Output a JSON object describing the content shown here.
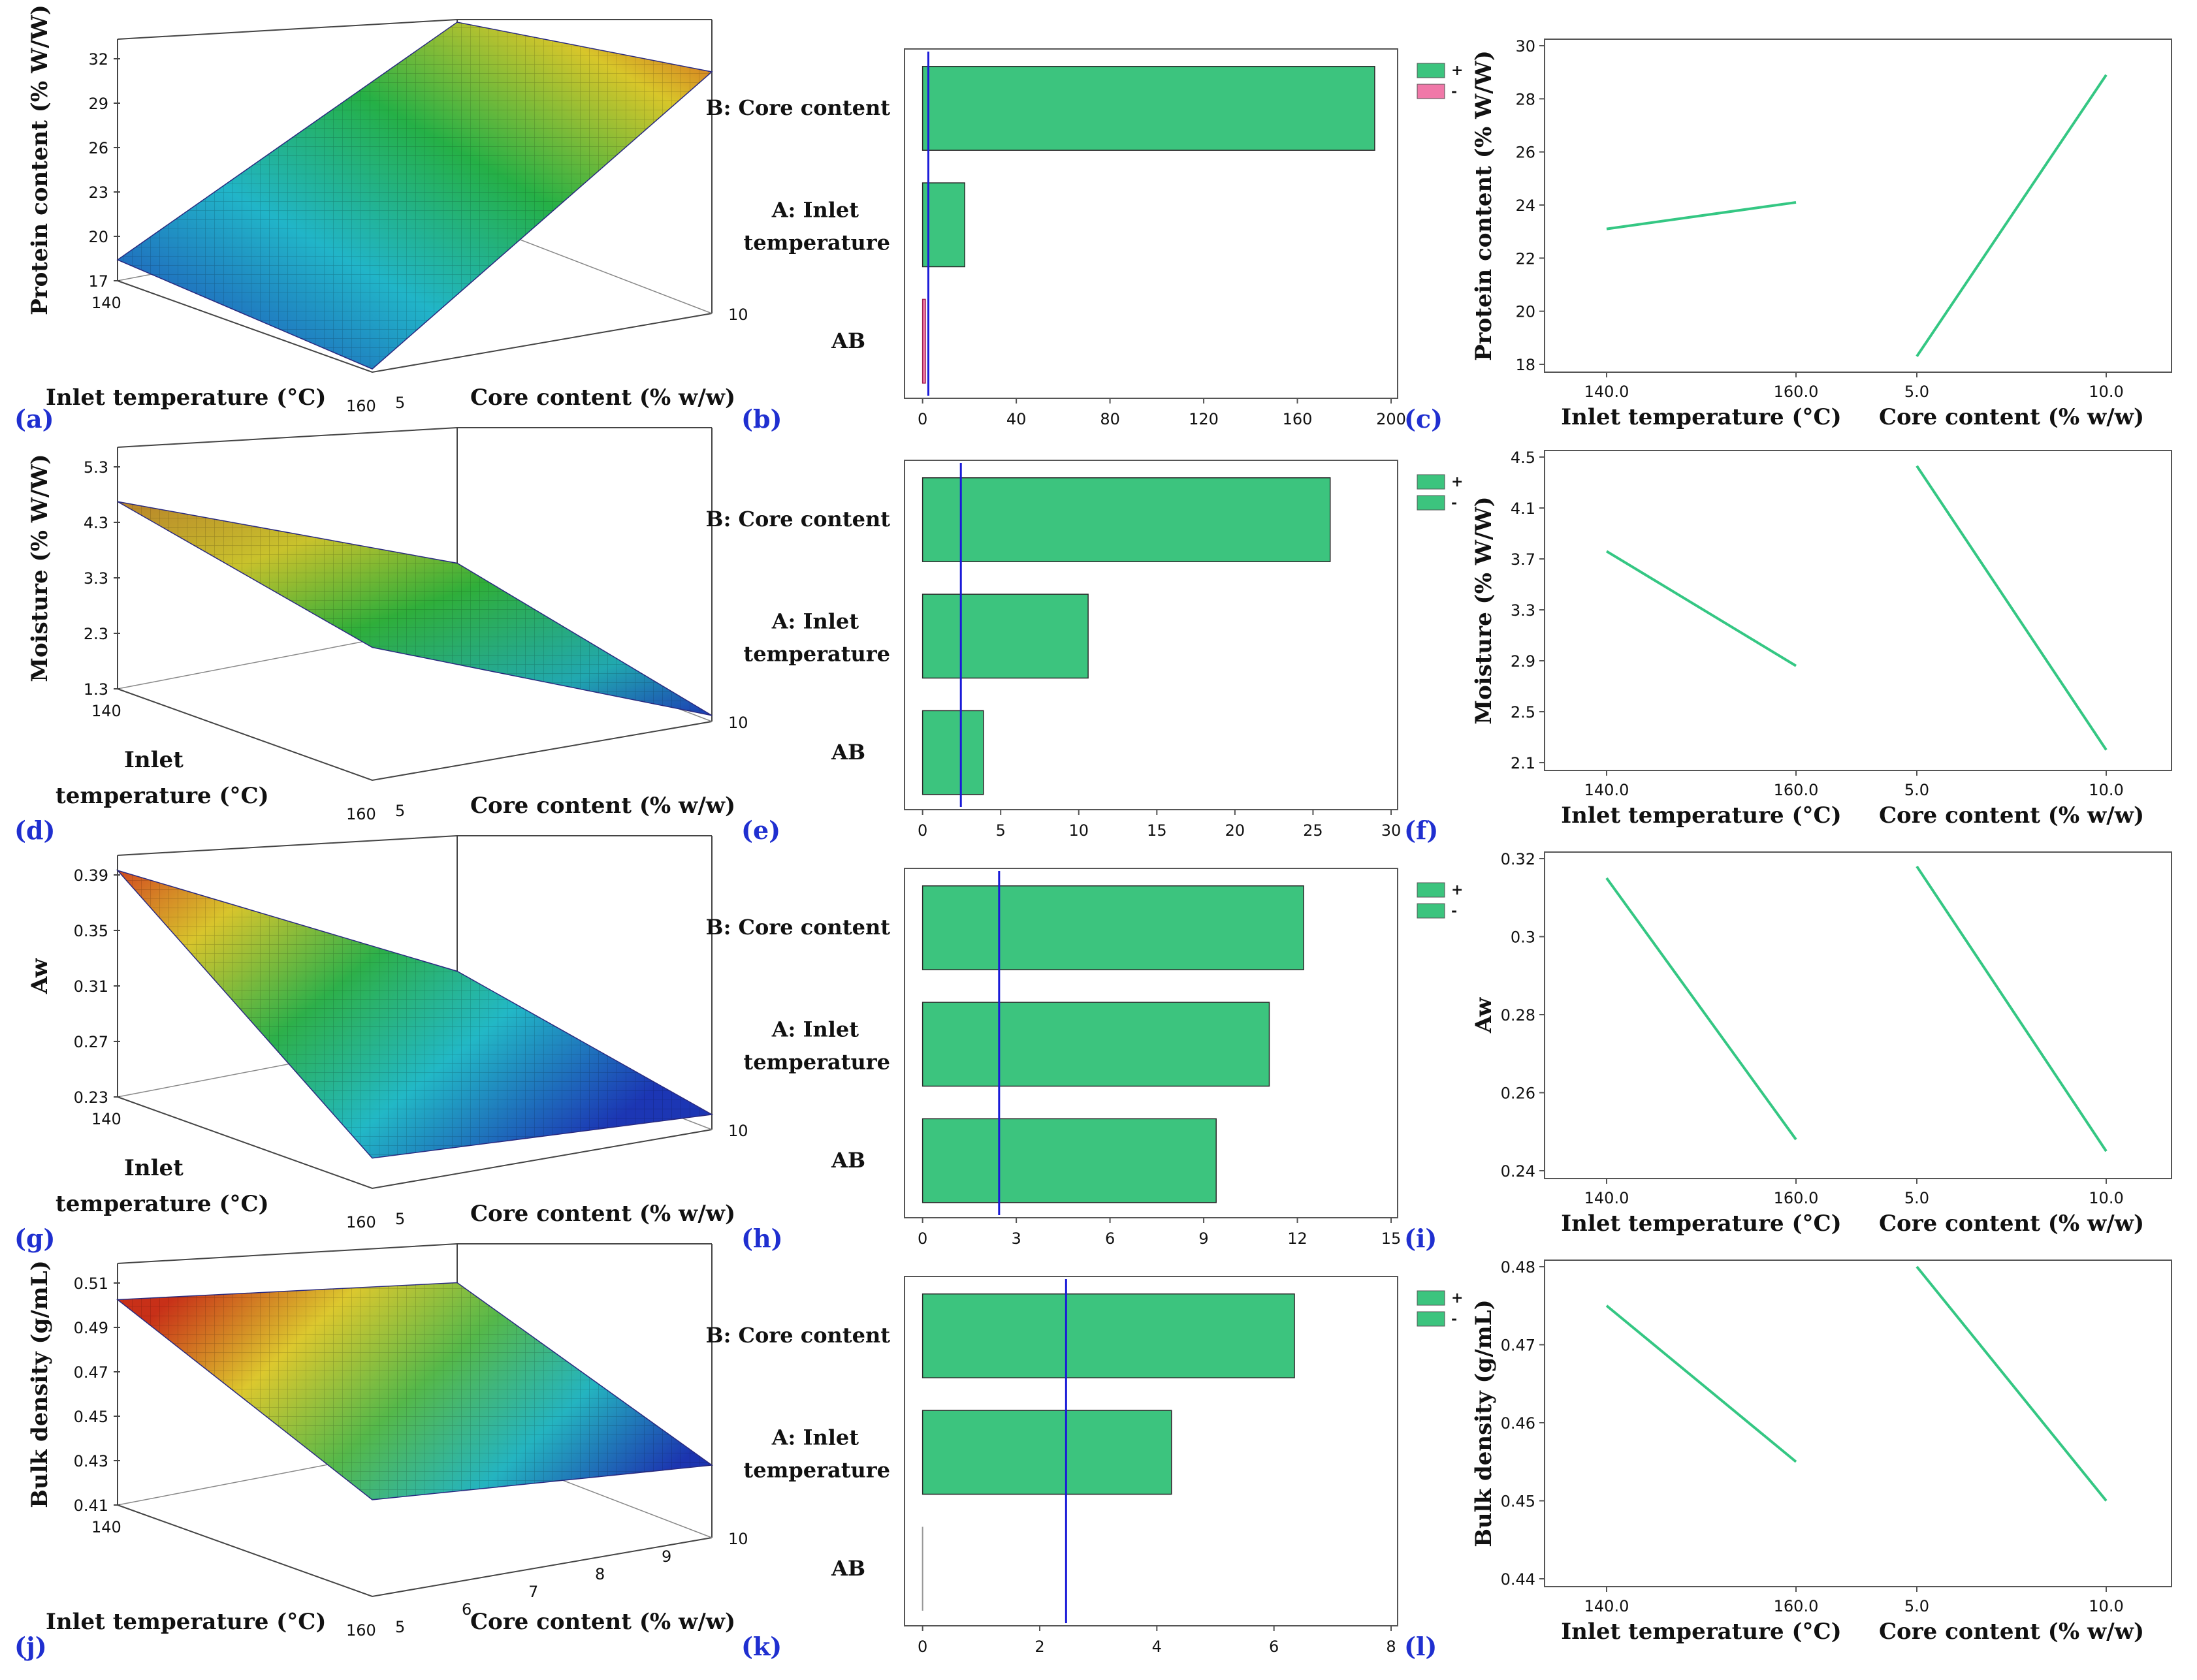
{
  "colors": {
    "bar_fill": "#3cc47e",
    "bar_stroke": "#2a2a2a",
    "negative_fill": "#f078a8",
    "ref_line": "#1a1ad8",
    "effect_line": "#34c783",
    "panel_letter": "#1f2fd0",
    "surface_low": "#1f3bb8",
    "surface_mid": "#1fb04a",
    "surface_high": "#d23a1a"
  },
  "panel_letters": [
    "(a)",
    "(b)",
    "(c)",
    "(d)",
    "(e)",
    "(f)",
    "(g)",
    "(h)",
    "(i)",
    "(j)",
    "(k)",
    "(l)"
  ],
  "legend": {
    "plus": "+",
    "minus": "-"
  },
  "surface_axes": {
    "inlet_label": "Inlet temperature (°C)",
    "inlet_label_line1": "Inlet",
    "inlet_label_line2": "temperature (°C)",
    "inlet_ticks": [
      "140",
      "160"
    ],
    "core_label": "Core content (% w/w)",
    "core_ticks_basic": [
      "5",
      "10"
    ],
    "core_ticks_full": [
      "5",
      "6",
      "7",
      "8",
      "9",
      "10"
    ]
  },
  "pareto_labels": {
    "b": "B: Core content",
    "a_line1": "A: Inlet",
    "a_line2": "temperature",
    "ab": "AB"
  },
  "effects_axes": {
    "inlet_label": "Inlet temperature (°C)",
    "core_label": "Core content (% w/w)",
    "inlet_ticks": [
      "140.0",
      "160.0"
    ],
    "core_ticks": [
      "5.0",
      "10.0"
    ]
  },
  "chart_data": [
    {
      "panel": "a",
      "type": "surface3d",
      "zlabel": "Protein content (% W/W)",
      "zticks": [
        "17",
        "20",
        "23",
        "26",
        "29",
        "32"
      ],
      "x": {
        "label": "Inlet temperature (°C)",
        "range": [
          140,
          160
        ]
      },
      "y": {
        "label": "Core content (% w/w)",
        "range": [
          5,
          10
        ]
      },
      "corners": {
        "t140_c5": 18.3,
        "t160_c5": 17.2,
        "t140_c10": 29.0,
        "t160_c10": 32.0
      }
    },
    {
      "panel": "b",
      "type": "bar",
      "orientation": "horizontal",
      "categories": [
        "B: Core content",
        "A: Inlet temperature",
        "AB"
      ],
      "values": [
        193,
        18,
        1.2
      ],
      "signs": [
        "+",
        "+",
        "-"
      ],
      "reference_line": 2.45,
      "xlim": [
        0,
        200
      ],
      "xticks": [
        "0",
        "40",
        "80",
        "120",
        "160",
        "200"
      ]
    },
    {
      "panel": "c",
      "type": "line",
      "ylabel": "Protein content (% W/W)",
      "ylim": [
        18,
        30
      ],
      "yticks": [
        "18",
        "20",
        "22",
        "24",
        "26",
        "28",
        "30"
      ],
      "series": [
        {
          "name": "Inlet temperature (°C)",
          "x": [
            140,
            160
          ],
          "y": [
            23.1,
            24.1
          ]
        },
        {
          "name": "Core content (% w/w)",
          "x": [
            5,
            10
          ],
          "y": [
            18.3,
            28.9
          ]
        }
      ]
    },
    {
      "panel": "d",
      "type": "surface3d",
      "zlabel": "Moisture (% W/W)",
      "zticks": [
        "1.3",
        "2.3",
        "3.3",
        "4.3",
        "5.3"
      ],
      "x": {
        "label": "Inlet temperature (°C)",
        "range": [
          140,
          160
        ]
      },
      "y": {
        "label": "Core content (% w/w)",
        "range": [
          5,
          10
        ]
      },
      "corners": {
        "t140_c5": 4.4,
        "t160_c5": 3.5,
        "t140_c10": 2.3,
        "t160_c10": 1.4
      }
    },
    {
      "panel": "e",
      "type": "bar",
      "orientation": "horizontal",
      "categories": [
        "B: Core content",
        "A: Inlet temperature",
        "AB"
      ],
      "values": [
        26.1,
        10.6,
        3.9
      ],
      "signs": [
        "-",
        "-",
        "-"
      ],
      "reference_line": 2.45,
      "xlim": [
        0,
        30
      ],
      "xticks": [
        "0",
        "5",
        "10",
        "15",
        "20",
        "25",
        "30"
      ]
    },
    {
      "panel": "f",
      "type": "line",
      "ylabel": "Moisture (% W/W)",
      "ylim": [
        2.1,
        4.5
      ],
      "yticks": [
        "2.1",
        "2.5",
        "2.9",
        "3.3",
        "3.7",
        "4.1",
        "4.5"
      ],
      "series": [
        {
          "name": "Inlet temperature (°C)",
          "x": [
            140,
            160
          ],
          "y": [
            3.76,
            2.86
          ]
        },
        {
          "name": "Core content (% w/w)",
          "x": [
            5,
            10
          ],
          "y": [
            4.43,
            2.2
          ]
        }
      ]
    },
    {
      "panel": "g",
      "type": "surface3d",
      "zlabel": "Aw",
      "zticks": [
        "0.23",
        "0.27",
        "0.31",
        "0.35",
        "0.39"
      ],
      "x": {
        "label": "Inlet temperature (°C)",
        "range": [
          140,
          160
        ]
      },
      "y": {
        "label": "Core content (% w/w)",
        "range": [
          5,
          10
        ]
      },
      "corners": {
        "t140_c5": 0.38,
        "t160_c5": 0.25,
        "t140_c10": 0.27,
        "t160_c10": 0.24
      }
    },
    {
      "panel": "h",
      "type": "bar",
      "orientation": "horizontal",
      "categories": [
        "B: Core content",
        "A: Inlet temperature",
        "AB"
      ],
      "values": [
        12.2,
        11.1,
        9.4
      ],
      "signs": [
        "-",
        "-",
        "-"
      ],
      "reference_line": 2.45,
      "xlim": [
        0,
        15
      ],
      "xticks": [
        "0",
        "3",
        "6",
        "9",
        "12",
        "15"
      ]
    },
    {
      "panel": "i",
      "type": "line",
      "ylabel": "Aw",
      "ylim": [
        0.24,
        0.32
      ],
      "yticks": [
        "0.24",
        "0.26",
        "0.28",
        "0.3",
        "0.32"
      ],
      "series": [
        {
          "name": "Inlet temperature (°C)",
          "x": [
            140,
            160
          ],
          "y": [
            0.315,
            0.248
          ]
        },
        {
          "name": "Core content (% w/w)",
          "x": [
            5,
            10
          ],
          "y": [
            0.318,
            0.245
          ]
        }
      ]
    },
    {
      "panel": "j",
      "type": "surface3d",
      "zlabel": "Bulk density (g/mL)",
      "zticks": [
        "0.41",
        "0.43",
        "0.45",
        "0.47",
        "0.49",
        "0.51"
      ],
      "x": {
        "label": "Inlet temperature (°C)",
        "range": [
          140,
          160
        ]
      },
      "y": {
        "label": "Core content (% w/w)",
        "range": [
          5,
          10
        ]
      },
      "corners": {
        "t140_c5": 0.495,
        "t160_c5": 0.45,
        "t140_c10": 0.475,
        "t160_c10": 0.44
      }
    },
    {
      "panel": "k",
      "type": "bar",
      "orientation": "horizontal",
      "categories": [
        "B: Core content",
        "A: Inlet temperature",
        "AB"
      ],
      "values": [
        6.35,
        4.25,
        0.0
      ],
      "signs": [
        "-",
        "-",
        "-"
      ],
      "reference_line": 2.45,
      "xlim": [
        0,
        8
      ],
      "xticks": [
        "0",
        "2",
        "4",
        "6",
        "8"
      ]
    },
    {
      "panel": "l",
      "type": "line",
      "ylabel": "Bulk density (g/mL)",
      "ylim": [
        0.44,
        0.48
      ],
      "yticks": [
        "0.44",
        "0.45",
        "0.46",
        "0.47",
        "0.48"
      ],
      "series": [
        {
          "name": "Inlet temperature (°C)",
          "x": [
            140,
            160
          ],
          "y": [
            0.475,
            0.455
          ]
        },
        {
          "name": "Core content (% w/w)",
          "x": [
            5,
            10
          ],
          "y": [
            0.48,
            0.45
          ]
        }
      ]
    }
  ]
}
